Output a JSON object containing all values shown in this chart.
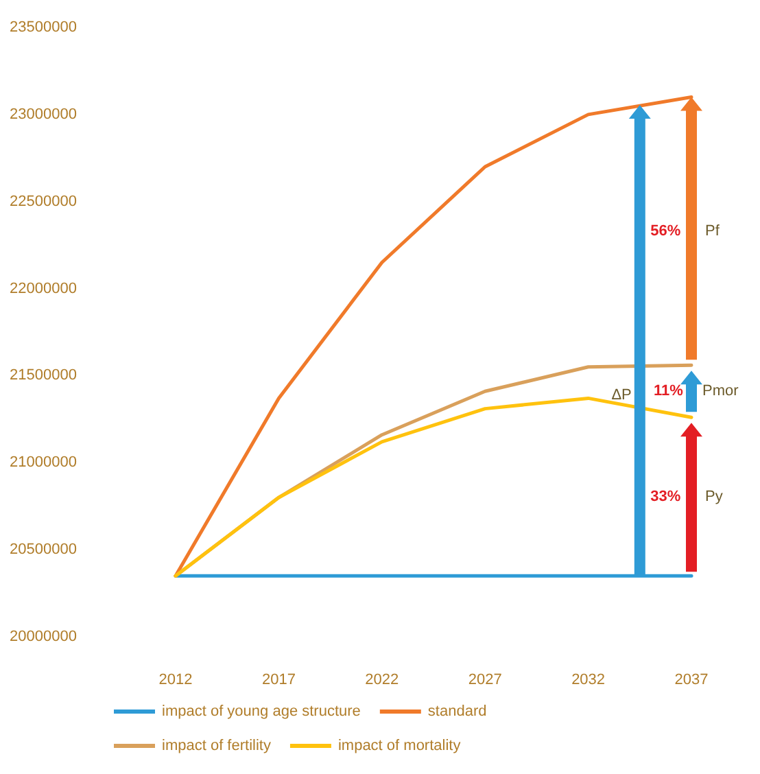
{
  "chart_data": {
    "type": "line",
    "categories": [
      "2012",
      "2017",
      "2022",
      "2027",
      "2032",
      "2037"
    ],
    "series": [
      {
        "name": "impact of young age structure",
        "color": "#2e9bd6",
        "values": [
          20350000,
          20350000,
          20350000,
          20350000,
          20350000,
          20350000
        ]
      },
      {
        "name": "standard",
        "color": "#f07a2a",
        "values": [
          20350000,
          21370000,
          22150000,
          22700000,
          23000000,
          23100000
        ]
      },
      {
        "name": "impact of fertility",
        "color": "#d9a05b",
        "values": [
          20350000,
          20800000,
          21160000,
          21410000,
          21550000,
          21560000
        ]
      },
      {
        "name": "impact of mortality",
        "color": "#ffc20e",
        "values": [
          20350000,
          20800000,
          21120000,
          21310000,
          21370000,
          21260000
        ]
      }
    ],
    "ylim": [
      20000000,
      23500000
    ],
    "yticks": [
      20000000,
      20500000,
      21000000,
      21500000,
      22000000,
      22500000,
      23000000,
      23500000
    ],
    "grid": false,
    "legend": "bottom",
    "marker": "none",
    "line_style": "solid",
    "annotations": [
      "ΔP",
      "56%",
      "Pf",
      "11%",
      "Pmor",
      "33%",
      "Py"
    ]
  }
}
